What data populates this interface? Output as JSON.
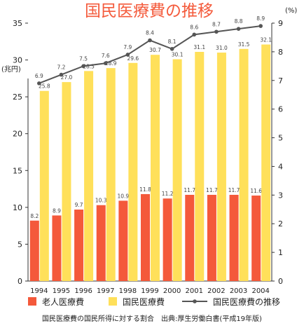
{
  "chart_data": {
    "type": "bar",
    "title": "国民医療費の推移",
    "left_axis_unit": "(兆円)",
    "right_axis_unit": "(%)",
    "categories": [
      "1994",
      "1995",
      "1996",
      "1997",
      "1998",
      "1999",
      "2000",
      "2001",
      "2002",
      "2003",
      "2004"
    ],
    "left_ylim": [
      0,
      35
    ],
    "left_ticks": [
      0,
      5,
      10,
      15,
      20,
      25,
      30,
      35
    ],
    "right_ylim": [
      0,
      9
    ],
    "right_ticks": [
      0,
      1,
      2,
      3,
      4,
      5,
      6,
      7,
      8,
      9
    ],
    "grid": false,
    "legend_position": "bottom",
    "series": [
      {
        "name": "老人医療費",
        "type": "bar",
        "axis": "left",
        "color": "#f4593b",
        "values": [
          8.2,
          8.9,
          9.7,
          10.3,
          10.9,
          11.8,
          11.2,
          11.7,
          11.7,
          11.7,
          11.6
        ],
        "labels": [
          "8.2",
          "8.9",
          "9.7",
          "10.3",
          "10.9",
          "11.8",
          "11.2",
          "11.7",
          "11.7",
          "11.7",
          "11.6"
        ]
      },
      {
        "name": "国民医療費",
        "type": "bar",
        "axis": "left",
        "color": "#ffe05a",
        "values": [
          25.8,
          27.0,
          28.5,
          28.9,
          29.6,
          30.7,
          30.1,
          31.1,
          31.0,
          31.5,
          32.1
        ],
        "labels": [
          "25.8",
          "27.0",
          "28.5",
          "28.9",
          "29.6",
          "30.7",
          "30.1",
          "31.1",
          "31.0",
          "31.5",
          "32.1"
        ]
      },
      {
        "name": "国民医療費の推移",
        "type": "line",
        "axis": "right",
        "color": "#555555",
        "values": [
          6.9,
          7.2,
          7.5,
          7.6,
          7.9,
          8.4,
          8.1,
          8.6,
          8.7,
          8.8,
          8.9
        ],
        "labels": [
          "6.9",
          "7.2",
          "7.5",
          "7.6",
          "7.9",
          "8.4",
          "8.1",
          "8.6",
          "8.7",
          "8.8",
          "8.9"
        ]
      }
    ],
    "footnote": "国民医療費の国民所得に対する割合　出典:厚生労働白書(平成19年版)"
  }
}
